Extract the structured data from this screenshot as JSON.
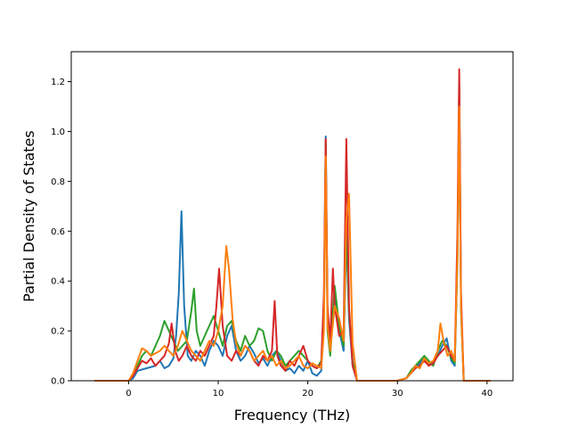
{
  "chart_data": {
    "type": "line",
    "title": "",
    "xlabel": "Frequency (THz)",
    "ylabel": "Partial Density of States",
    "xlim": [
      -6.4,
      42.9
    ],
    "ylim": [
      0.0,
      1.32
    ],
    "xticks": [
      0,
      10,
      20,
      30,
      40
    ],
    "xtick_labels": [
      "0",
      "10",
      "20",
      "30",
      "40"
    ],
    "yticks": [
      0.0,
      0.2,
      0.4,
      0.6,
      0.8,
      1.0,
      1.2
    ],
    "ytick_labels": [
      "0.0",
      "0.2",
      "0.4",
      "0.6",
      "0.8",
      "1.0",
      "1.2"
    ],
    "grid": false,
    "series": [
      {
        "color": "#1f77b4",
        "x": [
          -3.8,
          0,
          0.5,
          1,
          2,
          3,
          3.5,
          4,
          4.5,
          5,
          5.3,
          5.6,
          5.9,
          6.2,
          6.6,
          7,
          7.5,
          8,
          8.5,
          9,
          9.5,
          10,
          10.5,
          11,
          11.5,
          12,
          12.5,
          13,
          13.5,
          14,
          14.5,
          15,
          15.5,
          16,
          16.5,
          17,
          17.5,
          18,
          18.5,
          19,
          19.5,
          20,
          20.5,
          21,
          21.5,
          21.8,
          22,
          22.2,
          22.5,
          23,
          23.5,
          24,
          24.3,
          24.6,
          25,
          25.5,
          26,
          28,
          30,
          31,
          31.5,
          32,
          32.5,
          33,
          33.5,
          34,
          34.5,
          35,
          35.5,
          36,
          36.4,
          36.7,
          36.9,
          37.1,
          37.4,
          38,
          40.4
        ],
        "y": [
          0,
          0,
          0.01,
          0.04,
          0.05,
          0.06,
          0.08,
          0.05,
          0.06,
          0.09,
          0.18,
          0.35,
          0.68,
          0.3,
          0.1,
          0.08,
          0.12,
          0.1,
          0.06,
          0.12,
          0.16,
          0.14,
          0.1,
          0.18,
          0.22,
          0.12,
          0.08,
          0.1,
          0.14,
          0.11,
          0.07,
          0.09,
          0.06,
          0.1,
          0.12,
          0.08,
          0.04,
          0.05,
          0.03,
          0.06,
          0.04,
          0.08,
          0.03,
          0.02,
          0.04,
          0.3,
          0.98,
          0.25,
          0.12,
          0.35,
          0.2,
          0.12,
          0.6,
          0.25,
          0.06,
          0,
          0,
          0,
          0,
          0.01,
          0.03,
          0.05,
          0.07,
          0.09,
          0.06,
          0.08,
          0.1,
          0.14,
          0.17,
          0.08,
          0.06,
          0.5,
          1.2,
          0.3,
          0,
          0,
          0
        ]
      },
      {
        "color": "#2ca02c",
        "x": [
          -3.8,
          0,
          0.5,
          1,
          1.5,
          2,
          2.5,
          3,
          3.5,
          4,
          4.5,
          5,
          5.5,
          6,
          6.5,
          7,
          7.3,
          7.6,
          8,
          8.5,
          9,
          9.5,
          10,
          10.5,
          11,
          11.5,
          12,
          12.5,
          13,
          13.5,
          14,
          14.5,
          15,
          15.5,
          16,
          16.5,
          17,
          17.5,
          18,
          18.5,
          19,
          19.5,
          20,
          20.5,
          21,
          21.5,
          21.8,
          22,
          22.2,
          22.5,
          23,
          23.5,
          24,
          24.3,
          24.6,
          25,
          25.5,
          26,
          28,
          30,
          31,
          31.5,
          32,
          32.5,
          33,
          33.5,
          34,
          34.5,
          35,
          35.5,
          36,
          36.4,
          36.7,
          36.9,
          37.1,
          37.4,
          38,
          40.4
        ],
        "y": [
          0,
          0,
          0.02,
          0.06,
          0.1,
          0.12,
          0.1,
          0.14,
          0.18,
          0.24,
          0.2,
          0.16,
          0.12,
          0.14,
          0.16,
          0.28,
          0.37,
          0.2,
          0.14,
          0.18,
          0.22,
          0.26,
          0.2,
          0.14,
          0.22,
          0.24,
          0.16,
          0.12,
          0.18,
          0.14,
          0.16,
          0.21,
          0.2,
          0.12,
          0.08,
          0.12,
          0.1,
          0.06,
          0.08,
          0.1,
          0.12,
          0.1,
          0.08,
          0.06,
          0.05,
          0.08,
          0.25,
          0.95,
          0.2,
          0.1,
          0.38,
          0.22,
          0.14,
          0.62,
          0.28,
          0.08,
          0,
          0,
          0,
          0,
          0.01,
          0.04,
          0.06,
          0.08,
          0.1,
          0.08,
          0.06,
          0.12,
          0.16,
          0.14,
          0.09,
          0.07,
          0.48,
          1.18,
          0.28,
          0,
          0,
          0
        ]
      },
      {
        "color": "#d62728",
        "x": [
          -3.8,
          0,
          0.5,
          1,
          1.5,
          2,
          2.5,
          3,
          3.5,
          4,
          4.5,
          4.8,
          5.2,
          5.6,
          6,
          6.5,
          7,
          7.5,
          8,
          8.5,
          9,
          9.5,
          9.8,
          10.1,
          10.5,
          11,
          11.5,
          12,
          12.5,
          13,
          13.5,
          14,
          14.5,
          15,
          15.5,
          16,
          16.3,
          16.6,
          17,
          17.5,
          18,
          18.5,
          19,
          19.5,
          20,
          20.5,
          21,
          21.5,
          21.8,
          22,
          22.2,
          22.5,
          22.8,
          23,
          23.5,
          24,
          24.3,
          24.6,
          25,
          25.5,
          26,
          28,
          30,
          31,
          31.5,
          32,
          32.5,
          33,
          33.5,
          34,
          34.5,
          35,
          35.5,
          36,
          36.4,
          36.7,
          36.9,
          37.1,
          37.4,
          38,
          40.4
        ],
        "y": [
          0,
          0,
          0.02,
          0.05,
          0.08,
          0.07,
          0.09,
          0.06,
          0.08,
          0.1,
          0.15,
          0.23,
          0.12,
          0.08,
          0.1,
          0.14,
          0.1,
          0.08,
          0.12,
          0.1,
          0.14,
          0.18,
          0.3,
          0.45,
          0.22,
          0.1,
          0.08,
          0.12,
          0.1,
          0.14,
          0.12,
          0.08,
          0.06,
          0.1,
          0.08,
          0.12,
          0.32,
          0.1,
          0.06,
          0.04,
          0.08,
          0.06,
          0.1,
          0.14,
          0.08,
          0.06,
          0.05,
          0.07,
          0.35,
          0.97,
          0.3,
          0.15,
          0.45,
          0.3,
          0.18,
          0.2,
          0.97,
          0.3,
          0.06,
          0,
          0,
          0,
          0,
          0.01,
          0.03,
          0.05,
          0.06,
          0.08,
          0.06,
          0.07,
          0.1,
          0.12,
          0.14,
          0.1,
          0.08,
          0.6,
          1.25,
          0.35,
          0,
          0,
          0
        ]
      },
      {
        "color": "#ff7f0e",
        "x": [
          -3.8,
          0,
          0.5,
          1,
          1.5,
          2,
          2.5,
          3,
          3.5,
          4,
          4.5,
          5,
          5.5,
          6,
          6.5,
          7,
          7.5,
          8,
          8.5,
          9,
          9.5,
          10,
          10.5,
          10.9,
          11.2,
          11.6,
          12,
          12.5,
          13,
          13.5,
          14,
          14.5,
          15,
          15.5,
          16,
          16.5,
          17,
          17.5,
          18,
          18.5,
          19,
          19.5,
          20,
          20.5,
          21,
          21.5,
          21.8,
          22,
          22.2,
          22.5,
          23,
          23.5,
          24,
          24.3,
          24.6,
          25,
          25.5,
          26,
          28,
          30,
          31,
          31.5,
          32,
          32.5,
          33,
          33.5,
          34,
          34.5,
          34.8,
          35.2,
          35.6,
          36,
          36.4,
          36.7,
          36.9,
          37.1,
          37.4,
          38,
          40.4
        ],
        "y": [
          0,
          0,
          0.03,
          0.08,
          0.13,
          0.12,
          0.1,
          0.11,
          0.12,
          0.14,
          0.12,
          0.1,
          0.14,
          0.2,
          0.16,
          0.12,
          0.1,
          0.08,
          0.12,
          0.16,
          0.14,
          0.2,
          0.3,
          0.54,
          0.45,
          0.25,
          0.15,
          0.1,
          0.14,
          0.12,
          0.08,
          0.1,
          0.12,
          0.08,
          0.1,
          0.06,
          0.08,
          0.05,
          0.06,
          0.08,
          0.1,
          0.06,
          0.05,
          0.07,
          0.06,
          0.05,
          0.2,
          0.9,
          0.22,
          0.12,
          0.3,
          0.25,
          0.16,
          0.65,
          0.75,
          0.15,
          0,
          0,
          0,
          0,
          0.01,
          0.03,
          0.06,
          0.05,
          0.09,
          0.07,
          0.08,
          0.12,
          0.23,
          0.15,
          0.1,
          0.12,
          0.08,
          0.5,
          1.1,
          0.3,
          0,
          0,
          0
        ]
      }
    ]
  }
}
